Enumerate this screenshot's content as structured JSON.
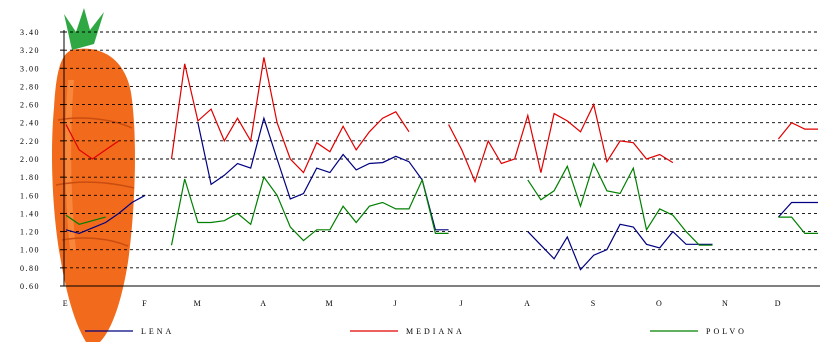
{
  "chart_data": {
    "type": "line",
    "title": "",
    "xlabel": "",
    "ylabel": "",
    "ylim": [
      0.6,
      3.4
    ],
    "yticks": [
      "0.60",
      "0.80",
      "1.00",
      "1.20",
      "1.40",
      "1.60",
      "1.80",
      "2.00",
      "2.20",
      "2.40",
      "2.60",
      "2.80",
      "3.00",
      "3.20",
      "3.40"
    ],
    "grid": "horizontal-dashed",
    "legend_position": "bottom",
    "month_labels": [
      "E",
      "F",
      "M",
      "A",
      "M",
      "J",
      "J",
      "A",
      "S",
      "O",
      "N",
      "D"
    ],
    "x_note": "x is a continuous week index (0-50) with month labels at approximately weeks 0,6,10,15,20,25,30,35,40,45,50,54",
    "series": [
      {
        "name": "LENA",
        "color": "#000080",
        "points": [
          [
            0,
            1.22
          ],
          [
            1,
            1.18
          ],
          [
            2,
            1.24
          ],
          [
            3,
            1.3
          ],
          [
            4,
            1.4
          ],
          [
            5,
            1.52
          ],
          [
            6,
            1.6
          ],
          [
            10,
            2.4
          ],
          [
            11,
            1.72
          ],
          [
            12,
            1.82
          ],
          [
            13,
            1.95
          ],
          [
            14,
            1.9
          ],
          [
            15,
            2.45
          ],
          [
            16,
            2.0
          ],
          [
            17,
            1.56
          ],
          [
            18,
            1.62
          ],
          [
            19,
            1.9
          ],
          [
            20,
            1.85
          ],
          [
            21,
            2.05
          ],
          [
            22,
            1.88
          ],
          [
            23,
            1.95
          ],
          [
            24,
            1.96
          ],
          [
            25,
            2.03
          ],
          [
            26,
            1.97
          ],
          [
            27,
            1.77
          ],
          [
            28,
            1.22
          ],
          [
            29,
            1.22
          ],
          [
            35,
            1.2
          ],
          [
            36,
            1.05
          ],
          [
            37,
            0.9
          ],
          [
            38,
            1.14
          ],
          [
            39,
            0.78
          ],
          [
            40,
            0.94
          ],
          [
            41,
            1.0
          ],
          [
            42,
            1.28
          ],
          [
            43,
            1.25
          ],
          [
            44,
            1.06
          ],
          [
            45,
            1.02
          ],
          [
            46,
            1.2
          ],
          [
            47,
            1.06
          ],
          [
            48,
            1.06
          ],
          [
            49,
            1.06
          ],
          [
            54,
            1.36
          ],
          [
            55,
            1.52
          ],
          [
            56,
            1.52
          ],
          [
            57,
            1.52
          ]
        ]
      },
      {
        "name": "MEDIANA",
        "color": "#e00000",
        "points": [
          [
            0,
            2.38
          ],
          [
            1,
            2.1
          ],
          [
            2,
            2.0
          ],
          [
            3,
            2.1
          ],
          [
            4,
            2.2
          ],
          [
            8,
            2.0
          ],
          [
            9,
            3.05
          ],
          [
            10,
            2.42
          ],
          [
            11,
            2.55
          ],
          [
            12,
            2.2
          ],
          [
            13,
            2.45
          ],
          [
            14,
            2.2
          ],
          [
            15,
            3.12
          ],
          [
            16,
            2.4
          ],
          [
            17,
            2.0
          ],
          [
            18,
            1.85
          ],
          [
            19,
            2.18
          ],
          [
            20,
            2.08
          ],
          [
            21,
            2.36
          ],
          [
            22,
            2.1
          ],
          [
            23,
            2.3
          ],
          [
            24,
            2.45
          ],
          [
            25,
            2.52
          ],
          [
            26,
            2.3
          ],
          [
            29,
            2.38
          ],
          [
            30,
            2.1
          ],
          [
            31,
            1.75
          ],
          [
            32,
            2.2
          ],
          [
            33,
            1.95
          ],
          [
            34,
            2.0
          ],
          [
            35,
            2.48
          ],
          [
            36,
            1.85
          ],
          [
            37,
            2.5
          ],
          [
            38,
            2.42
          ],
          [
            39,
            2.3
          ],
          [
            40,
            2.6
          ],
          [
            41,
            1.97
          ],
          [
            42,
            2.2
          ],
          [
            43,
            2.18
          ],
          [
            44,
            2.0
          ],
          [
            45,
            2.05
          ],
          [
            46,
            1.96
          ],
          [
            54,
            2.22
          ],
          [
            55,
            2.4
          ],
          [
            56,
            2.33
          ],
          [
            57,
            2.33
          ]
        ]
      },
      {
        "name": "POLVO",
        "color": "#008000",
        "points": [
          [
            0,
            1.38
          ],
          [
            1,
            1.28
          ],
          [
            2,
            1.32
          ],
          [
            3,
            1.36
          ],
          [
            8,
            1.05
          ],
          [
            9,
            1.78
          ],
          [
            10,
            1.3
          ],
          [
            11,
            1.3
          ],
          [
            12,
            1.32
          ],
          [
            13,
            1.4
          ],
          [
            14,
            1.28
          ],
          [
            15,
            1.8
          ],
          [
            16,
            1.6
          ],
          [
            17,
            1.25
          ],
          [
            18,
            1.1
          ],
          [
            19,
            1.22
          ],
          [
            20,
            1.22
          ],
          [
            21,
            1.48
          ],
          [
            22,
            1.3
          ],
          [
            23,
            1.48
          ],
          [
            24,
            1.52
          ],
          [
            25,
            1.45
          ],
          [
            26,
            1.45
          ],
          [
            27,
            1.77
          ],
          [
            28,
            1.18
          ],
          [
            29,
            1.18
          ],
          [
            35,
            1.77
          ],
          [
            36,
            1.55
          ],
          [
            37,
            1.65
          ],
          [
            38,
            1.92
          ],
          [
            39,
            1.48
          ],
          [
            40,
            1.95
          ],
          [
            41,
            1.65
          ],
          [
            42,
            1.62
          ],
          [
            43,
            1.9
          ],
          [
            44,
            1.22
          ],
          [
            45,
            1.45
          ],
          [
            46,
            1.38
          ],
          [
            47,
            1.2
          ],
          [
            48,
            1.05
          ],
          [
            49,
            1.05
          ],
          [
            54,
            1.36
          ],
          [
            55,
            1.36
          ],
          [
            56,
            1.18
          ],
          [
            57,
            1.18
          ]
        ]
      }
    ]
  }
}
